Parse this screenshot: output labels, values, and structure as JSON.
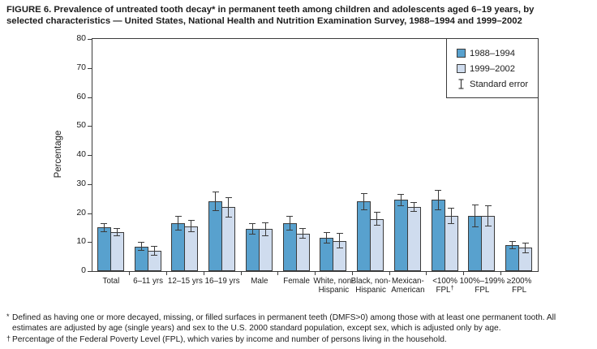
{
  "figure": {
    "title_lines": [
      "FIGURE 6. Prevalence of untreated tooth decay* in permanent teeth among children and adolescents aged 6–19 years, by",
      "selected characteristics — United States, National Health and Nutrition Examination Survey, 1988–1994 and 1999–2002"
    ],
    "title_full": "FIGURE 6. Prevalence of untreated tooth decay* in permanent teeth among children and adolescents aged 6–19 years, by selected characteristics — United States, National Health and Nutrition Examination Survey, 1988–1994 and 1999–2002"
  },
  "chart_data": {
    "type": "bar",
    "title": "FIGURE 6. Prevalence of untreated tooth decay* in permanent teeth among children and adolescents aged 6–19 years, by selected characteristics — United States, National Health and Nutrition Examination Survey, 1988–1994 and 1999–2002",
    "xlabel": "",
    "ylabel": "Percentage",
    "ylim": [
      0,
      80
    ],
    "ytick_step": 10,
    "grid": false,
    "legend_position": "top-right",
    "categories": [
      "Total",
      "6–11 yrs",
      "12–15 yrs",
      "16–19 yrs",
      "Male",
      "Female",
      "White, non-Hispanic",
      "Black, non-Hispanic",
      "Mexican-American",
      "<100% FPL",
      "100%–199% FPL",
      "≥200% FPL"
    ],
    "category_display": [
      {
        "id": "total",
        "lines": [
          "Total"
        ]
      },
      {
        "id": "6-11-yrs",
        "lines": [
          "6–11 yrs"
        ]
      },
      {
        "id": "12-15-yrs",
        "lines": [
          "12–15 yrs"
        ]
      },
      {
        "id": "16-19-yrs",
        "lines": [
          "16–19 yrs"
        ]
      },
      {
        "id": "male",
        "lines": [
          "Male"
        ]
      },
      {
        "id": "female",
        "lines": [
          "Female"
        ]
      },
      {
        "id": "white-non-hispanic",
        "lines": [
          "White, non-",
          "Hispanic"
        ]
      },
      {
        "id": "black-non-hispanic",
        "lines": [
          "Black, non-",
          "Hispanic"
        ]
      },
      {
        "id": "mexican-american",
        "lines": [
          "Mexican-",
          "American"
        ]
      },
      {
        "id": "lt-100pct-fpl",
        "lines": [
          "<100%",
          "FPL†"
        ]
      },
      {
        "id": "100-199pct-fpl",
        "lines": [
          "100%–199%",
          "FPL"
        ]
      },
      {
        "id": "gte-200pct-fpl",
        "lines": [
          "≥200%",
          "FPL"
        ]
      }
    ],
    "series": [
      {
        "name": "1988–1994",
        "color": "#58A1CE",
        "values": [
          15,
          8.5,
          16.5,
          24,
          14.5,
          16.5,
          11.5,
          24,
          24.5,
          24.5,
          19,
          9
        ],
        "standard_errors": [
          1.6,
          1.6,
          2.5,
          3.4,
          1.9,
          2.5,
          2.0,
          3.0,
          2.0,
          3.4,
          4.0,
          1.5
        ]
      },
      {
        "name": "1999–2002",
        "color": "#CFDCEE",
        "values": [
          13.5,
          7,
          15.5,
          22,
          14.5,
          13,
          10.5,
          18,
          22,
          19,
          19,
          8
        ],
        "standard_errors": [
          1.4,
          1.7,
          2.0,
          3.4,
          2.4,
          1.9,
          2.6,
          2.3,
          1.7,
          2.8,
          3.7,
          1.8
        ]
      }
    ],
    "legend": {
      "standard_error_label": "Standard error"
    }
  },
  "footnotes": [
    {
      "marker": "*",
      "lines": [
        "Defined as having one or more decayed, missing, or filled surfaces in permanent teeth (DMFS>0) among those with at least one permanent tooth. All",
        "estimates are adjusted by age (single years) and sex to the U.S. 2000 standard population, except sex, which is adjusted only by age."
      ]
    },
    {
      "marker": "†",
      "lines": [
        "Percentage of the Federal Poverty Level (FPL), which varies by income and number of persons living in the household."
      ]
    }
  ],
  "colors": {
    "bar_1988_1994": "#58A1CE",
    "bar_1999_2002": "#CFDCEE",
    "axis": "#3B3B3B",
    "text": "#1C1C1C"
  }
}
